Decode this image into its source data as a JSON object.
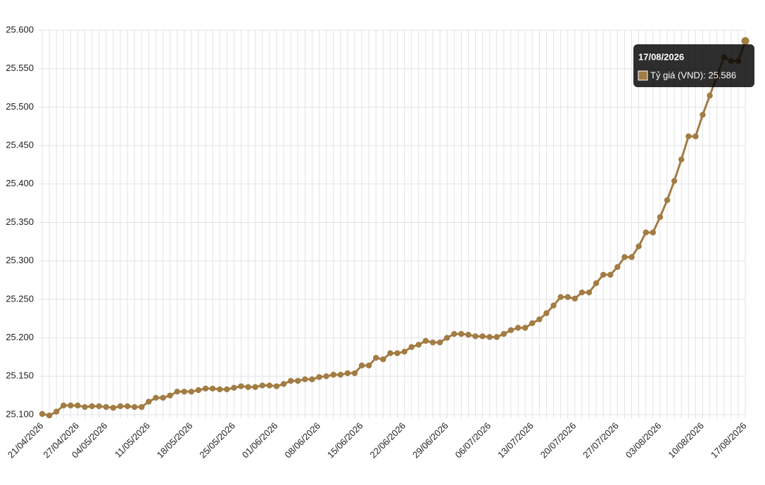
{
  "chart_data": {
    "type": "line",
    "categories": [
      "21/04/2026",
      null,
      null,
      null,
      null,
      "27/04/2026",
      null,
      null,
      null,
      "04/05/2026",
      null,
      null,
      null,
      null,
      null,
      "11/05/2026",
      null,
      null,
      null,
      null,
      null,
      "18/05/2026",
      null,
      null,
      null,
      null,
      null,
      "25/05/2026",
      null,
      null,
      null,
      null,
      null,
      "01/06/2026",
      null,
      null,
      null,
      null,
      null,
      "08/06/2026",
      null,
      null,
      null,
      null,
      null,
      "15/06/2026",
      null,
      null,
      null,
      null,
      null,
      "22/06/2026",
      null,
      null,
      null,
      null,
      null,
      "29/06/2026",
      null,
      null,
      null,
      null,
      null,
      "06/07/2026",
      null,
      null,
      null,
      null,
      null,
      "13/07/2026",
      null,
      null,
      null,
      null,
      null,
      "20/07/2026",
      null,
      null,
      null,
      null,
      null,
      "27/07/2026",
      null,
      null,
      null,
      null,
      null,
      "03/08/2026",
      null,
      null,
      null,
      null,
      null,
      "10/08/2026",
      null,
      null,
      null,
      null,
      null,
      "17/08/2026"
    ],
    "series": [
      {
        "name": "Tỷ giá (VND)",
        "color": "#a27c43",
        "values": [
          25101,
          25099,
          25104,
          25112,
          25112,
          25112,
          25110,
          25111,
          25111,
          25110,
          25109,
          25111,
          25111,
          25110,
          25110,
          25117,
          25122,
          25122,
          25125,
          25130,
          25130,
          25130,
          25132,
          25134,
          25134,
          25133,
          25133,
          25135,
          25137,
          25136,
          25136,
          25138,
          25138,
          25137,
          25140,
          25144,
          25144,
          25146,
          25146,
          25149,
          25150,
          25152,
          25152,
          25154,
          25154,
          25164,
          25164,
          25174,
          25172,
          25180,
          25180,
          25182,
          25188,
          25191,
          25196,
          25194,
          25194,
          25200,
          25205,
          25205,
          25204,
          25202,
          25202,
          25201,
          25201,
          25205,
          25210,
          25213,
          25213,
          25219,
          25224,
          25232,
          25242,
          25253,
          25253,
          25251,
          25259,
          25259,
          25271,
          25282,
          25282,
          25292,
          25305,
          25305,
          25319,
          25337,
          25337,
          25357,
          25379,
          25404,
          25432,
          25462,
          25462,
          25490,
          25515,
          25540,
          25565,
          25560,
          25560,
          25586
        ]
      }
    ],
    "ylim": [
      25100,
      25600
    ],
    "yticks": [
      {
        "value": 25100,
        "label": "25.100"
      },
      {
        "value": 25150,
        "label": "25.150"
      },
      {
        "value": 25200,
        "label": "25.200"
      },
      {
        "value": 25250,
        "label": "25.250"
      },
      {
        "value": 25300,
        "label": "25.300"
      },
      {
        "value": 25350,
        "label": "25.350"
      },
      {
        "value": 25400,
        "label": "25.400"
      },
      {
        "value": 25450,
        "label": "25.450"
      },
      {
        "value": 25500,
        "label": "25.500"
      },
      {
        "value": 25550,
        "label": "25.550"
      },
      {
        "value": 25600,
        "label": "25.600"
      }
    ],
    "grid": true,
    "tooltip": {
      "title": "17/08/2026",
      "label": "Tỷ giá (VND): 25.586"
    }
  }
}
